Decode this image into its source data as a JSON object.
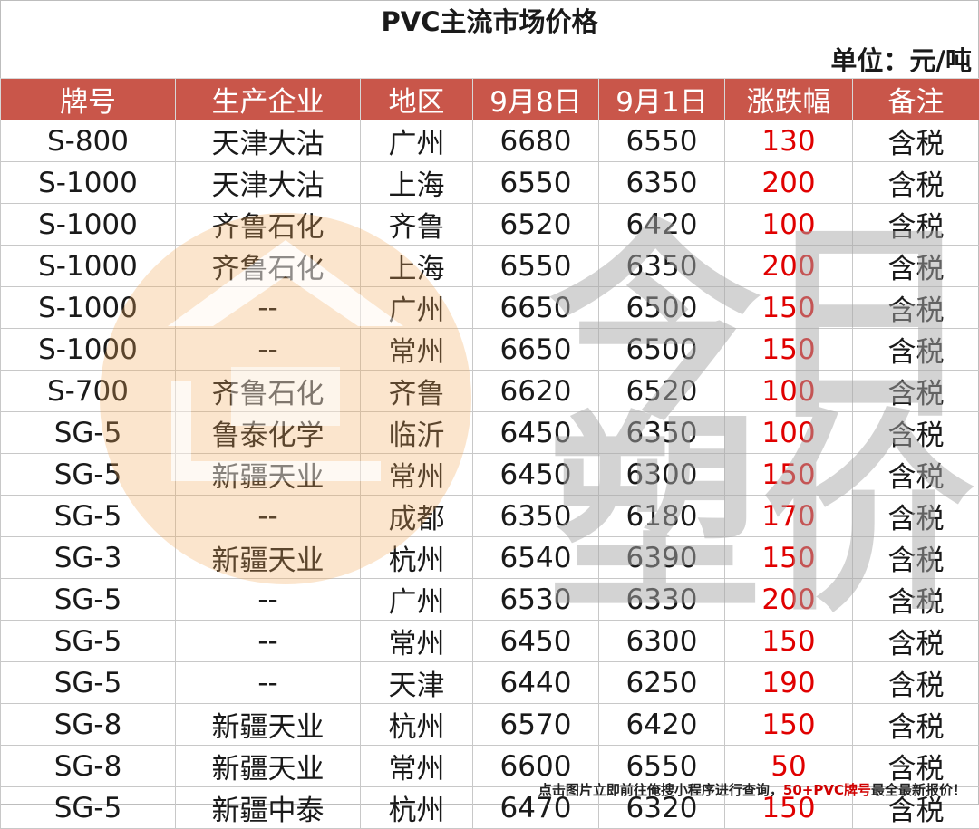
{
  "title": "PVC主流市场价格",
  "unit": "单位：元/吨",
  "headers": [
    "牌号",
    "生产企业",
    "地区",
    "9月8日",
    "9月1日",
    "涨跌幅",
    "备注"
  ],
  "rows": [
    [
      "S-800",
      "天津大沽",
      "广州",
      "6680",
      "6550",
      "130",
      "含税"
    ],
    [
      "S-1000",
      "天津大沽",
      "上海",
      "6550",
      "6350",
      "200",
      "含税"
    ],
    [
      "S-1000",
      "齐鲁石化",
      "齐鲁",
      "6520",
      "6420",
      "100",
      "含税"
    ],
    [
      "S-1000",
      "齐鲁石化",
      "上海",
      "6550",
      "6350",
      "200",
      "含税"
    ],
    [
      "S-1000",
      "--",
      "广州",
      "6650",
      "6500",
      "150",
      "含税"
    ],
    [
      "S-1000",
      "--",
      "常州",
      "6650",
      "6500",
      "150",
      "含税"
    ],
    [
      "S-700",
      "齐鲁石化",
      "齐鲁",
      "6620",
      "6520",
      "100",
      "含税"
    ],
    [
      "SG-5",
      "鲁泰化学",
      "临沂",
      "6450",
      "6350",
      "100",
      "含税"
    ],
    [
      "SG-5",
      "新疆天业",
      "常州",
      "6450",
      "6300",
      "150",
      "含税"
    ],
    [
      "SG-5",
      "--",
      "成都",
      "6350",
      "6180",
      "170",
      "含税"
    ],
    [
      "SG-3",
      "新疆天业",
      "杭州",
      "6540",
      "6390",
      "150",
      "含税"
    ],
    [
      "SG-5",
      "--",
      "广州",
      "6530",
      "6330",
      "200",
      "含税"
    ],
    [
      "SG-5",
      "--",
      "常州",
      "6450",
      "6300",
      "150",
      "含税"
    ],
    [
      "SG-5",
      "--",
      "天津",
      "6440",
      "6250",
      "190",
      "含税"
    ],
    [
      "SG-8",
      "新疆天业",
      "杭州",
      "6570",
      "6420",
      "150",
      "含税"
    ],
    [
      "SG-8",
      "新疆天业",
      "常州",
      "6600",
      "6550",
      "50",
      "含税"
    ],
    [
      "SG-5",
      "新疆中泰",
      "杭州",
      "6470",
      "6320",
      "150",
      "含税"
    ]
  ],
  "footer": {
    "prefix": "点击图片立即前往俺搜小程序进行查询，",
    "highlight": "50+PVC牌号",
    "suffix": "最全最新报价！"
  },
  "watermark": {
    "text": [
      "今日",
      "塑价"
    ]
  },
  "colors": {
    "header_bg": "#c9564a",
    "header_text": "#ffffff",
    "change_text": "#e00000",
    "watermark_orange": "#f2a95a",
    "watermark_gray": "#a9a9a9"
  }
}
